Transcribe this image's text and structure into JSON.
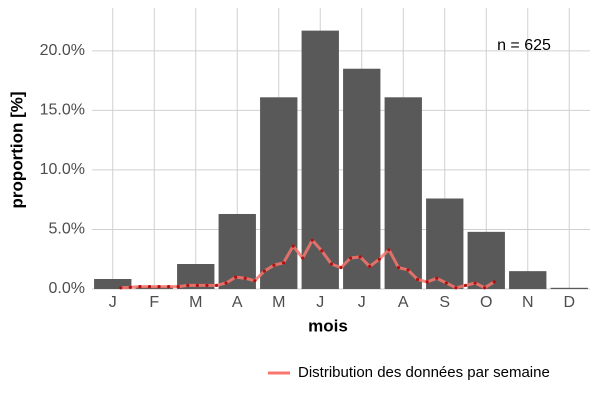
{
  "chart_data": {
    "type": "bar",
    "xlabel": "mois",
    "ylabel": "proportion [%]",
    "annotation": "n = 625",
    "categories": [
      "J",
      "F",
      "M",
      "A",
      "M",
      "J",
      "J",
      "A",
      "S",
      "O",
      "N",
      "D"
    ],
    "values": [
      0.84,
      0.2,
      2.1,
      6.3,
      16.1,
      21.7,
      18.5,
      16.1,
      7.6,
      4.8,
      1.5,
      0.1
    ],
    "color": "#595959",
    "ylim": [
      0,
      23.6
    ],
    "yticks": [
      {
        "value": 0,
        "label": "0.0%"
      },
      {
        "value": 5,
        "label": "5.0%"
      },
      {
        "value": 10,
        "label": "10.0%"
      },
      {
        "value": 15,
        "label": "15.0%"
      },
      {
        "value": 20,
        "label": "20.0%"
      }
    ],
    "grid": true,
    "legend": "bottom",
    "lines": [
      {
        "name": "Distribution des données par semaine",
        "color": "#f8766d",
        "point_color": "#b01010",
        "xlim": [
          0,
          52
        ],
        "x": [
          3,
          4,
          5,
          6,
          7,
          8,
          9,
          10,
          11,
          12,
          13,
          14,
          15,
          16,
          17,
          18,
          19,
          20,
          21,
          22,
          23,
          24,
          25,
          26,
          27,
          28,
          29,
          30,
          31,
          32,
          33,
          34,
          35,
          36,
          37,
          38,
          39,
          40,
          41,
          42
        ],
        "values": [
          0.1,
          0.15,
          0.2,
          0.2,
          0.2,
          0.2,
          0.2,
          0.3,
          0.3,
          0.3,
          0.3,
          0.5,
          1.0,
          0.9,
          0.7,
          1.5,
          2.0,
          2.2,
          3.6,
          2.6,
          4.1,
          3.2,
          2.1,
          1.8,
          2.6,
          2.7,
          1.9,
          2.5,
          3.3,
          1.8,
          1.6,
          0.8,
          0.6,
          0.9,
          0.5,
          0.1,
          0.3,
          0.5,
          0.1,
          0.6
        ]
      }
    ]
  }
}
